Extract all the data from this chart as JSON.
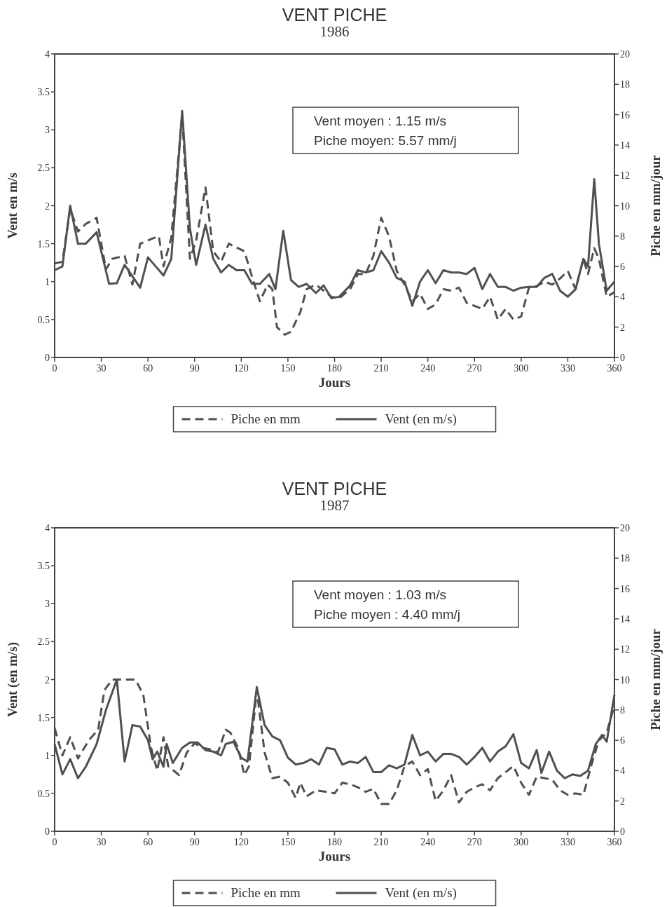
{
  "chart_data": [
    {
      "type": "line",
      "title": "VENT   PICHE",
      "subtitle": "1986",
      "xlabel": "Jours",
      "ylabel": "Vent  en m/s",
      "y2label": "Piche  en mm/jour",
      "annotations": [
        "Vent moyen : 1.15 m/s",
        "Piche moyen:  5.57 mm/j"
      ],
      "xlim": [
        0,
        360
      ],
      "xticks": [
        0,
        30,
        60,
        90,
        120,
        150,
        180,
        210,
        240,
        270,
        300,
        330,
        360
      ],
      "ylim": [
        0,
        4
      ],
      "yticks": [
        0,
        0.5,
        1,
        1.5,
        2,
        2.5,
        3,
        3.5,
        4
      ],
      "y2lim": [
        0,
        20
      ],
      "y2ticks": [
        0,
        2,
        4,
        6,
        8,
        10,
        12,
        14,
        16,
        18,
        20
      ],
      "legend": "bottom",
      "grid": false,
      "series": [
        {
          "name": "Piche en mm",
          "color": "#505050",
          "axis": "y2",
          "line_style": "dashed",
          "x": [
            0,
            5,
            10,
            15,
            20,
            27,
            33,
            37,
            45,
            50,
            55,
            62,
            67,
            70,
            75,
            82,
            87,
            91,
            97,
            102,
            107,
            112,
            118,
            122,
            127,
            132,
            137,
            140,
            143,
            148,
            152,
            158,
            162,
            168,
            173,
            178,
            183,
            190,
            195,
            200,
            205,
            210,
            215,
            220,
            225,
            230,
            235,
            240,
            245,
            250,
            255,
            260,
            265,
            270,
            275,
            280,
            285,
            290,
            295,
            300,
            305,
            310,
            315,
            320,
            325,
            330,
            335,
            340,
            343,
            347,
            350,
            355,
            360
          ],
          "values": [
            6.2,
            6.3,
            9.8,
            8.3,
            8.8,
            9.2,
            5.8,
            6.5,
            6.7,
            4.8,
            7.5,
            7.8,
            8.0,
            6.0,
            7.9,
            16.0,
            6.5,
            7.7,
            11.2,
            7.0,
            6.3,
            7.5,
            7.2,
            7.0,
            5.3,
            3.7,
            4.8,
            4.5,
            2.0,
            1.5,
            1.7,
            3.0,
            4.5,
            4.8,
            4.4,
            4.0,
            3.9,
            4.5,
            5.5,
            5.5,
            6.7,
            9.2,
            8.0,
            5.7,
            4.8,
            3.7,
            4.2,
            3.2,
            3.5,
            4.5,
            4.4,
            4.6,
            3.6,
            3.4,
            3.2,
            4.0,
            2.5,
            3.2,
            2.5,
            2.7,
            4.6,
            4.7,
            5.0,
            4.8,
            5.2,
            5.7,
            4.5,
            6.5,
            5.5,
            7.2,
            6.5,
            4.0,
            4.3
          ]
        },
        {
          "name": "Vent (en m/s)",
          "color": "#505050",
          "line_style": "solid",
          "x": [
            0,
            5,
            10,
            15,
            20,
            27,
            35,
            40,
            45,
            55,
            60,
            65,
            70,
            75,
            82,
            87,
            91,
            97,
            102,
            107,
            112,
            117,
            122,
            127,
            132,
            138,
            142,
            147,
            152,
            157,
            162,
            168,
            173,
            178,
            183,
            190,
            195,
            200,
            205,
            210,
            215,
            220,
            225,
            230,
            235,
            240,
            245,
            250,
            255,
            260,
            265,
            270,
            275,
            280,
            285,
            290,
            295,
            300,
            305,
            310,
            315,
            320,
            325,
            330,
            335,
            340,
            343,
            347,
            350,
            355,
            360
          ],
          "values": [
            1.15,
            1.2,
            2.0,
            1.5,
            1.5,
            1.65,
            0.97,
            0.98,
            1.22,
            0.92,
            1.32,
            1.2,
            1.08,
            1.3,
            3.25,
            1.7,
            1.22,
            1.75,
            1.3,
            1.12,
            1.22,
            1.15,
            1.15,
            0.97,
            0.97,
            1.1,
            0.9,
            1.67,
            1.02,
            0.93,
            0.97,
            0.85,
            0.95,
            0.78,
            0.8,
            0.95,
            1.15,
            1.12,
            1.15,
            1.4,
            1.25,
            1.05,
            1.0,
            0.68,
            1.0,
            1.15,
            0.98,
            1.15,
            1.12,
            1.12,
            1.1,
            1.18,
            0.9,
            1.1,
            0.93,
            0.93,
            0.88,
            0.92,
            0.93,
            0.93,
            1.05,
            1.1,
            0.88,
            0.8,
            0.9,
            1.3,
            1.2,
            2.35,
            1.5,
            0.88,
            1.0
          ]
        }
      ]
    },
    {
      "type": "line",
      "title": "VENT   PICHE",
      "subtitle": "1987",
      "xlabel": "Jours",
      "ylabel": "Vent  (en m/s)",
      "y2label": "Piche  en mm/jour",
      "annotations": [
        "Vent moyen   : 1.03 m/s",
        "Piche moyen   : 4.40 mm/j"
      ],
      "xlim": [
        0,
        360
      ],
      "xticks": [
        0,
        30,
        60,
        90,
        120,
        150,
        180,
        210,
        240,
        270,
        300,
        330,
        360
      ],
      "ylim": [
        0,
        4
      ],
      "yticks": [
        0,
        0.5,
        1,
        1.5,
        2,
        2.5,
        3,
        3.5,
        4
      ],
      "y2lim": [
        0,
        20
      ],
      "y2ticks": [
        0,
        2,
        4,
        6,
        8,
        10,
        12,
        14,
        16,
        18,
        20
      ],
      "legend": "bottom",
      "grid": false,
      "series": [
        {
          "name": "Piche en mm",
          "color": "#505050",
          "axis": "y2",
          "line_style": "dashed",
          "x": [
            0,
            5,
            10,
            15,
            22,
            28,
            32,
            37,
            45,
            52,
            57,
            62,
            66,
            70,
            73,
            80,
            85,
            90,
            95,
            100,
            105,
            110,
            113,
            118,
            122,
            125,
            130,
            135,
            140,
            145,
            150,
            155,
            158,
            162,
            168,
            175,
            180,
            185,
            190,
            195,
            200,
            205,
            210,
            215,
            220,
            225,
            230,
            235,
            240,
            245,
            250,
            255,
            260,
            265,
            270,
            275,
            280,
            285,
            290,
            295,
            300,
            305,
            310,
            315,
            320,
            325,
            330,
            335,
            340,
            345,
            350,
            355,
            360
          ],
          "values": [
            6.8,
            5.0,
            6.2,
            4.8,
            6.0,
            6.7,
            9.3,
            10.0,
            10.0,
            10.0,
            9.0,
            5.5,
            4.0,
            6.2,
            4.3,
            3.7,
            5.2,
            5.8,
            5.5,
            5.4,
            5.2,
            6.7,
            6.5,
            5.5,
            3.7,
            4.3,
            9.3,
            5.2,
            3.5,
            3.6,
            3.2,
            2.2,
            3.2,
            2.3,
            2.7,
            2.6,
            2.5,
            3.2,
            3.1,
            2.9,
            2.6,
            2.8,
            1.8,
            1.8,
            2.7,
            4.3,
            4.6,
            3.7,
            4.1,
            2.0,
            2.7,
            3.7,
            1.9,
            2.6,
            2.9,
            3.1,
            2.7,
            3.5,
            3.9,
            4.3,
            3.2,
            2.4,
            3.6,
            3.5,
            3.4,
            2.7,
            2.4,
            2.5,
            2.4,
            4.3,
            6.0,
            6.5,
            8.3
          ]
        },
        {
          "name": "Vent (en m/s)",
          "color": "#505050",
          "line_style": "solid",
          "x": [
            0,
            5,
            10,
            15,
            20,
            27,
            33,
            40,
            45,
            50,
            55,
            60,
            63,
            66,
            70,
            72,
            76,
            82,
            87,
            92,
            97,
            102,
            107,
            110,
            115,
            120,
            124,
            130,
            135,
            140,
            145,
            150,
            155,
            160,
            165,
            170,
            175,
            180,
            185,
            190,
            195,
            200,
            205,
            210,
            215,
            220,
            225,
            230,
            235,
            240,
            245,
            250,
            255,
            260,
            265,
            270,
            275,
            280,
            285,
            290,
            295,
            300,
            305,
            310,
            313,
            318,
            323,
            328,
            333,
            338,
            343,
            348,
            352,
            355,
            360
          ],
          "values": [
            1.15,
            0.75,
            0.95,
            0.7,
            0.85,
            1.15,
            1.6,
            2.0,
            0.92,
            1.4,
            1.38,
            1.2,
            0.95,
            1.05,
            0.85,
            1.15,
            0.9,
            1.1,
            1.17,
            1.17,
            1.07,
            1.05,
            1.0,
            1.15,
            1.18,
            0.97,
            0.92,
            1.9,
            1.4,
            1.25,
            1.2,
            0.97,
            0.88,
            0.9,
            0.95,
            0.88,
            1.1,
            1.08,
            0.88,
            0.92,
            0.9,
            0.98,
            0.78,
            0.78,
            0.87,
            0.83,
            0.88,
            1.27,
            1.0,
            1.05,
            0.92,
            1.02,
            1.02,
            0.98,
            0.88,
            0.98,
            1.1,
            0.92,
            1.05,
            1.12,
            1.28,
            0.9,
            0.83,
            1.07,
            0.77,
            1.05,
            0.8,
            0.7,
            0.75,
            0.73,
            0.8,
            1.15,
            1.27,
            1.18,
            1.8
          ]
        }
      ]
    }
  ]
}
